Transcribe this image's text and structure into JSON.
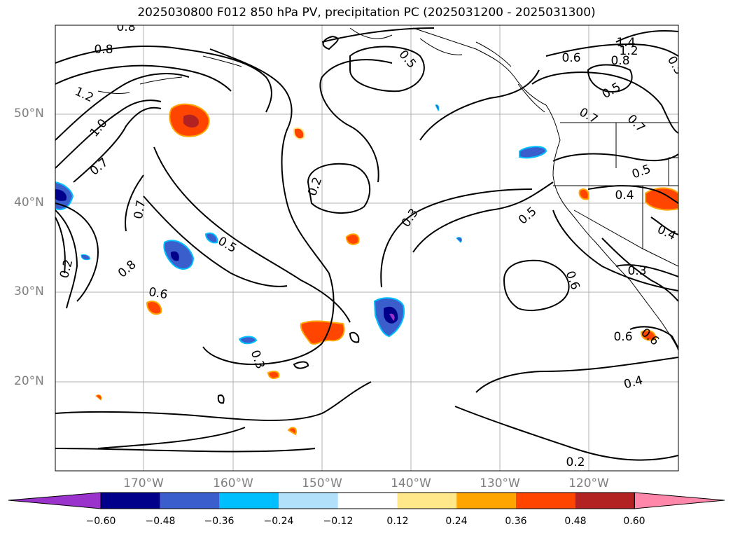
{
  "title": "2025030800 F012 850 hPa PV, precipitation PC (2025031200 - 2025031300)",
  "lat_labels": [
    "50°N",
    "40°N",
    "30°N",
    "20°N"
  ],
  "lon_labels": [
    "170°W",
    "160°W",
    "150°W",
    "140°W",
    "130°W",
    "120°W"
  ],
  "contour_labels": [
    "0.8",
    "0.8",
    "1.2",
    "1.0",
    "0.7",
    "0.7",
    "0.8",
    "0.6",
    "0.5",
    "0.5",
    "0.2",
    "0.3",
    "0.2",
    "0.3",
    "0.5",
    "0.6",
    "0.7",
    "0.5",
    "0.4",
    "0.4",
    "0.3",
    "0.4",
    "0.2",
    "0.6",
    "1.4",
    "1.2",
    "0.8",
    "0.5",
    "0.6",
    "0.5",
    "0.7",
    "0.6"
  ],
  "colorbar": {
    "ticks": [
      "−0.60",
      "−0.48",
      "−0.36",
      "−0.24",
      "−0.12",
      "0.12",
      "0.24",
      "0.36",
      "0.48",
      "0.60"
    ],
    "colors": [
      "#9933cc",
      "#00008b",
      "#3a5fcd",
      "#00bfff",
      "#b0e0fa",
      "#ffffff",
      "#ffe88a",
      "#ffa500",
      "#ff4500",
      "#b22222",
      "#ff88aa"
    ]
  }
}
